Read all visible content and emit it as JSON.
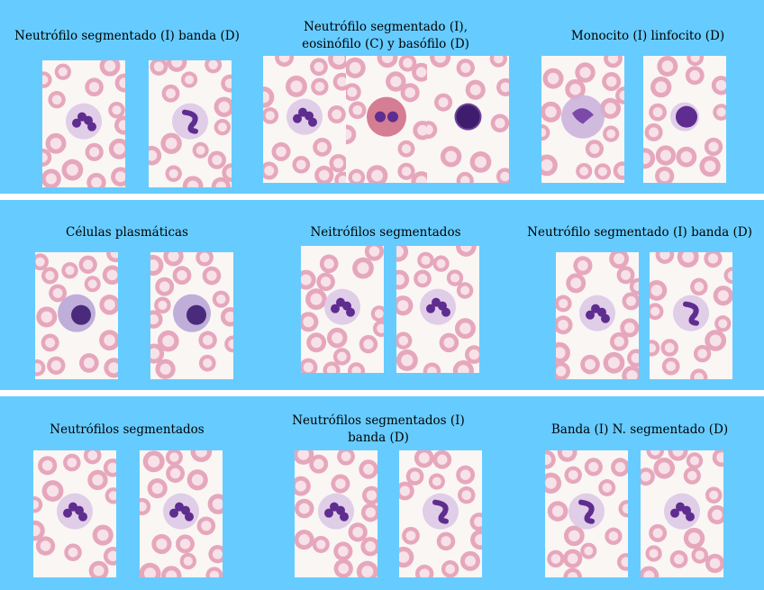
{
  "colors": {
    "band": "#66ccff",
    "background": "#ffffff",
    "rbc_ring": "#e6a7bc",
    "rbc_center": "#f7e2e9",
    "nucleus": "#5e2d8f",
    "cytoplasm": "#ddc9e6",
    "eosinophil_granules": "#d07088",
    "monocyte_cytoplasm": "#cbb5dc",
    "plasma_cytoplasm": "#b8a6d6"
  },
  "captions": {
    "r1c1": "Neutrófilo segmentado (I) banda (D)",
    "r1c2_line1": "Neutrófilo segmentado (I),",
    "r1c2_line2": "eosinófilo (C)  y basófilo (D)",
    "r1c3": "Monocito (I) linfocito (D)",
    "r2c1": "Células plasmáticas",
    "r2c2": "Neitrófilos segmentados",
    "r2c3": "Neutrófilo segmentado (I) banda (D)",
    "r3c1": "Neutrófilos segmentados",
    "r3c2_line1": "Neutrófilos segmentados (I)",
    "r3c2_line2": "banda (D)",
    "r3c3": "Banda (I) N. segmentado (D)"
  },
  "cell_types": {
    "r1c1a": "segmented-neutrophil",
    "r1c1b": "band-neutrophil",
    "r1c2a": "segmented-neutrophil",
    "r1c2b": "eosinophil",
    "r1c2c": "basophil",
    "r1c3a": "monocyte",
    "r1c3b": "lymphocyte",
    "r2c1a": "plasma-cell",
    "r2c1b": "plasma-cell",
    "r2c2a": "segmented-neutrophil",
    "r2c2b": "segmented-neutrophil",
    "r2c3a": "segmented-neutrophil",
    "r2c3b": "band-neutrophil",
    "r3c1a": "segmented-neutrophil",
    "r3c1b": "segmented-neutrophil",
    "r3c2a": "segmented-neutrophil",
    "r3c2b": "band-neutrophil",
    "r3c3a": "band-neutrophil",
    "r3c3b": "segmented-neutrophil"
  }
}
